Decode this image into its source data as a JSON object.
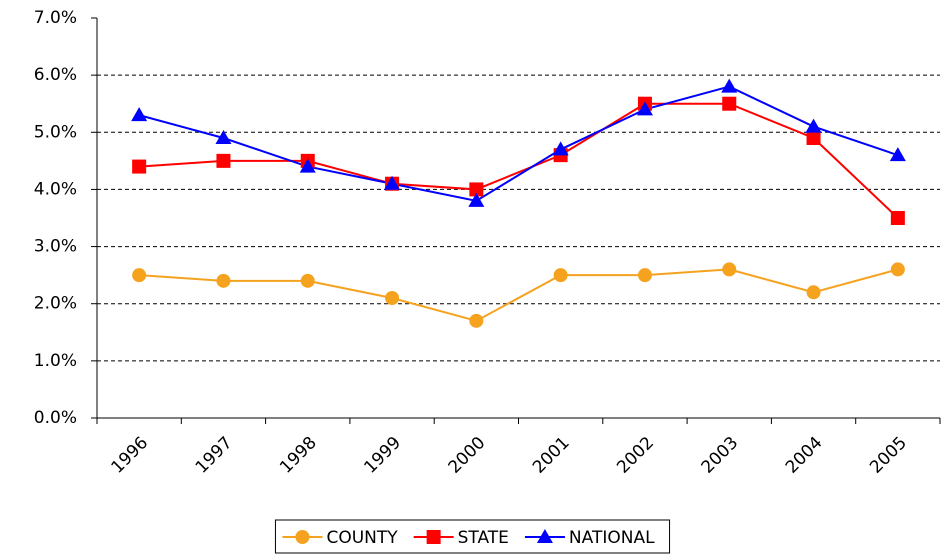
{
  "chart_data": {
    "type": "line",
    "categories": [
      "1996",
      "1997",
      "1998",
      "1999",
      "2000",
      "2001",
      "2002",
      "2003",
      "2004",
      "2005"
    ],
    "series": [
      {
        "name": "COUNTY",
        "color": "#f5a31f",
        "marker": "circle",
        "values": [
          2.5,
          2.4,
          2.4,
          2.1,
          1.7,
          2.5,
          2.5,
          2.6,
          2.2,
          2.6
        ]
      },
      {
        "name": "STATE",
        "color": "#ff0000",
        "marker": "square",
        "values": [
          4.4,
          4.5,
          4.5,
          4.1,
          4.0,
          4.6,
          5.5,
          5.5,
          4.9,
          3.5
        ]
      },
      {
        "name": "NATIONAL",
        "color": "#0000ff",
        "marker": "triangle",
        "values": [
          5.3,
          4.9,
          4.4,
          4.1,
          3.8,
          4.7,
          5.4,
          5.8,
          5.1,
          4.6
        ]
      }
    ],
    "ylim": [
      0,
      7
    ],
    "yticks": [
      {
        "value": 0,
        "label": "0.0%"
      },
      {
        "value": 1,
        "label": "1.0%"
      },
      {
        "value": 2,
        "label": "2.0%"
      },
      {
        "value": 3,
        "label": "3.0%"
      },
      {
        "value": 4,
        "label": "4.0%"
      },
      {
        "value": 5,
        "label": "5.0%"
      },
      {
        "value": 6,
        "label": "6.0%"
      },
      {
        "value": 7,
        "label": "7.0%"
      }
    ],
    "grid": true,
    "legend": "bottom"
  }
}
